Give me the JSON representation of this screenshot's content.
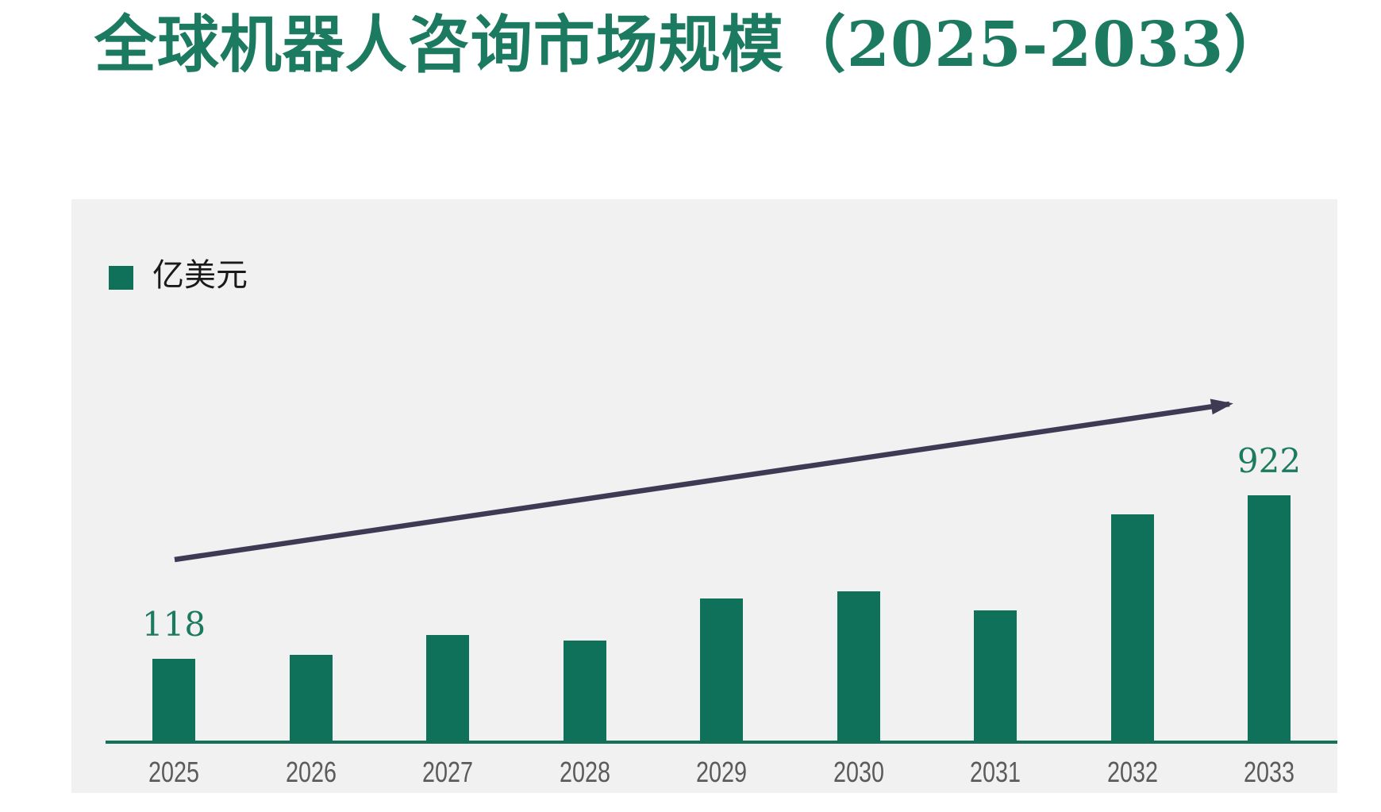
{
  "page": {
    "background_color": "#FFFFFF"
  },
  "colors": {
    "title_green": "#1B7A5F",
    "bar_green": "#10715A",
    "value_label_green": "#1C7A5F",
    "axis_line_green": "#157258",
    "arrow_dark": "#3E3A54",
    "x_label_gray": "#5B5B5B",
    "panel_background": "#F1F1F2",
    "legend_text_black": "#1A1A1A"
  },
  "chart_data": {
    "type": "bar",
    "title": "全球机器人咨询市场规模（2025-2033）",
    "unit_legend": "亿美元",
    "legend_position": "top-left",
    "grid": false,
    "categories": [
      "2025",
      "2026",
      "2027",
      "2028",
      "2029",
      "2030",
      "2031",
      "2032",
      "2033"
    ],
    "series": [
      {
        "name": "亿美元",
        "values": [
          118,
          null,
          null,
          null,
          null,
          null,
          null,
          null,
          922
        ]
      }
    ],
    "data_labels": [
      {
        "category": "2025",
        "text": "118"
      },
      {
        "category": "2033",
        "text": "922"
      }
    ],
    "bar_heights_relative": [
      105,
      110,
      135,
      128,
      181,
      190,
      166,
      287,
      311
    ],
    "x_axis": {
      "labels_visible": true,
      "baseline_visible": true,
      "ticks_visible": false
    },
    "y_axis": {
      "visible": false
    },
    "annotations": [
      {
        "type": "trend-arrow",
        "description": "straight arrow rising from above 2025 bar toward upper right above 2033 bar"
      }
    ]
  }
}
